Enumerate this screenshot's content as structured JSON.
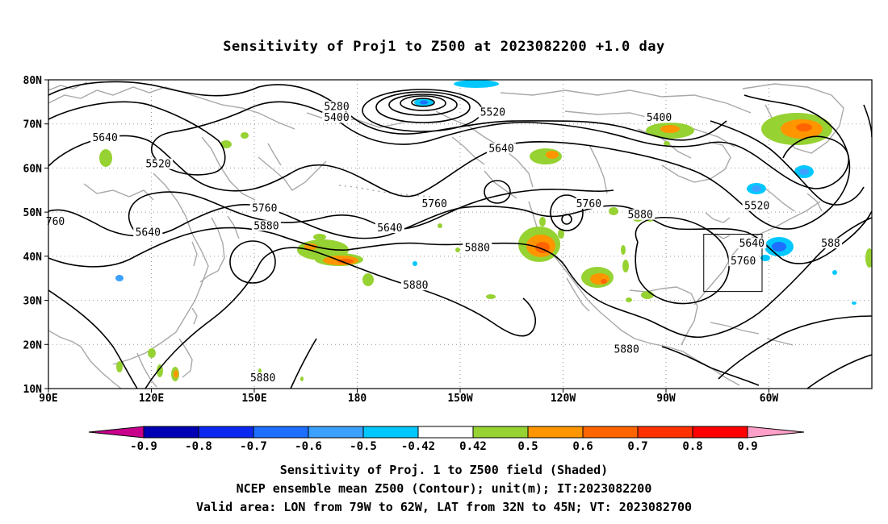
{
  "title": "Sensitivity of Proj1 to Z500 at 2023082200 +1.0 day",
  "lat_labels": [
    "80N",
    "70N",
    "60N",
    "50N",
    "40N",
    "30N",
    "20N",
    "10N"
  ],
  "lon_labels": [
    "90E",
    "120E",
    "150E",
    "180",
    "150W",
    "120W",
    "90W",
    "60W"
  ],
  "contour_labels": [
    {
      "text": "5280",
      "lon": 174,
      "lat": 73.5
    },
    {
      "text": "5400",
      "lon": 174,
      "lat": 71.0
    },
    {
      "text": "5520",
      "lon": 219.5,
      "lat": 72.2
    },
    {
      "text": "5400",
      "lon": 268,
      "lat": 71.0
    },
    {
      "text": "5640",
      "lon": 106.5,
      "lat": 66.5
    },
    {
      "text": "5520",
      "lon": 122,
      "lat": 60.5
    },
    {
      "text": "5640",
      "lon": 222,
      "lat": 64.0
    },
    {
      "text": "5520",
      "lon": 296.5,
      "lat": 51.0
    },
    {
      "text": "5760",
      "lon": 202.5,
      "lat": 51.5
    },
    {
      "text": "5760",
      "lon": 153,
      "lat": 50.5
    },
    {
      "text": "5640",
      "lon": 189.5,
      "lat": 46.0
    },
    {
      "text": "5640",
      "lon": 119,
      "lat": 45.0
    },
    {
      "text": "5760",
      "lon": 247.5,
      "lat": 51.5
    },
    {
      "text": "5880",
      "lon": 153.5,
      "lat": 46.5
    },
    {
      "text": "5880",
      "lon": 262.5,
      "lat": 49.0
    },
    {
      "text": "5880",
      "lon": 215,
      "lat": 41.5
    },
    {
      "text": "5640",
      "lon": 295,
      "lat": 42.5
    },
    {
      "text": "5760",
      "lon": 292.5,
      "lat": 38.5
    },
    {
      "text": "5880",
      "lon": 197,
      "lat": 33.0
    },
    {
      "text": "5880",
      "lon": 258.5,
      "lat": 18.5
    },
    {
      "text": "5880",
      "lon": 152.5,
      "lat": 12.0
    },
    {
      "text": "760",
      "lon": 92,
      "lat": 47.5
    },
    {
      "text": "588",
      "lon": 318,
      "lat": 42.5
    }
  ],
  "valid_box": {
    "lon_min": 281,
    "lon_max": 298,
    "lat_min": 32,
    "lat_max": 45
  },
  "colorbar": {
    "labels": [
      "-0.9",
      "-0.8",
      "-0.7",
      "-0.6",
      "-0.5",
      "-0.42",
      "0.42",
      "0.5",
      "0.6",
      "0.7",
      "0.8",
      "0.9"
    ],
    "colors": [
      "#0000b4",
      "#0a28f0",
      "#1e6eff",
      "#3ca0ff",
      "#00c8ff",
      "#ffffff",
      "#96d232",
      "#ff9600",
      "#ff6400",
      "#ff3200",
      "#ff0000"
    ],
    "left_triangle_color": "#c8008c",
    "right_triangle_color": "#ffa0c8"
  },
  "captions": [
    "Sensitivity of Proj. 1 to Z500 field (Shaded)",
    "NCEP ensemble mean Z500 (Contour); unit(m); IT:2023082200",
    "Valid area: LON from 79W to 62W, LAT from 32N to 45N; VT: 2023082700"
  ]
}
